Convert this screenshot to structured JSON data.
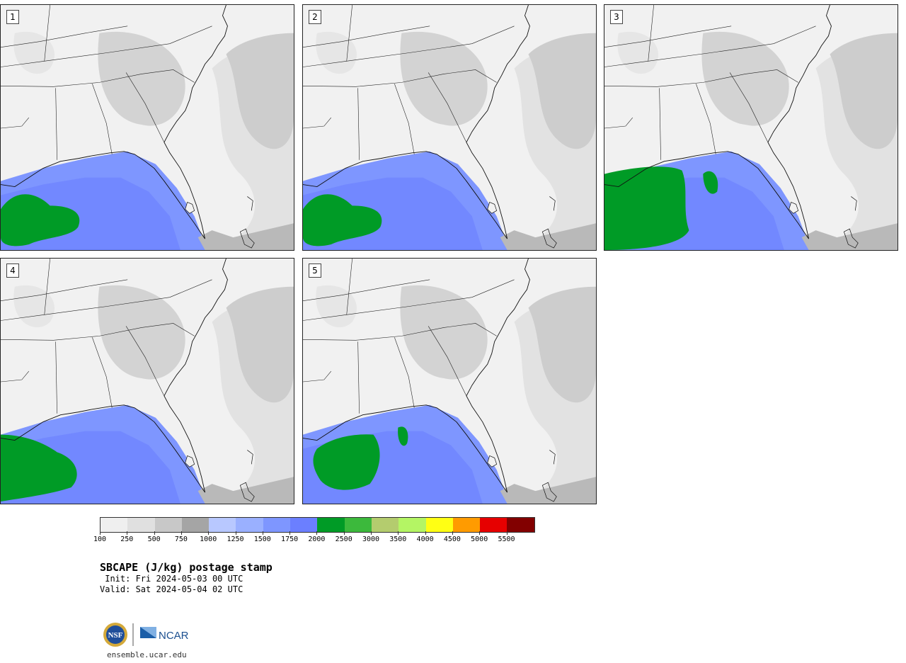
{
  "panels": [
    {
      "label": "1",
      "green": "sw-large"
    },
    {
      "label": "2",
      "green": "sw-large"
    },
    {
      "label": "3",
      "green": "big-west"
    },
    {
      "label": "4",
      "green": "west-edge"
    },
    {
      "label": "5",
      "green": "mid"
    }
  ],
  "colorbar": {
    "colors": [
      "#efefef",
      "#e0e0e0",
      "#c8c8c8",
      "#a5a5a5",
      "#b8c8ff",
      "#9ab0ff",
      "#7e96ff",
      "#6b7fff",
      "#009b26",
      "#3cb93c",
      "#b4cc6e",
      "#b4f564",
      "#ffff14",
      "#ff9b00",
      "#e60000",
      "#820000"
    ],
    "ticks": [
      "100",
      "250",
      "500",
      "750",
      "1000",
      "1250",
      "1500",
      "1750",
      "2000",
      "2500",
      "3000",
      "3500",
      "4000",
      "4500",
      "5000",
      "5500"
    ]
  },
  "title": "SBCAPE (J/kg) postage stamp",
  "init": " Init: Fri 2024-05-03 00 UTC",
  "valid": "Valid: Sat 2024-05-04 02 UTC",
  "logos": {
    "nsf": "NSF",
    "ncar": "NCAR"
  },
  "site": "ensemble.ucar.edu"
}
